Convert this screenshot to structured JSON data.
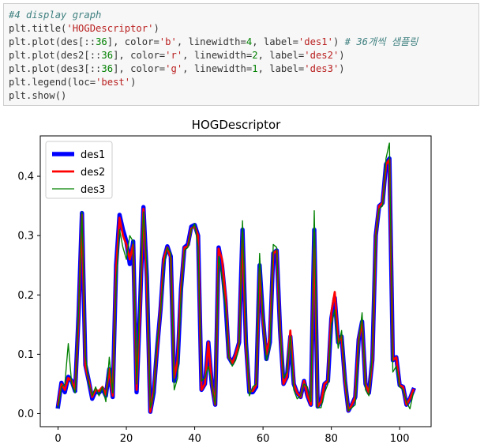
{
  "code_cell": {
    "lines": [
      [
        {
          "t": "#4 display graph",
          "c": "comment"
        }
      ],
      [
        {
          "t": "plt.title(",
          "c": ""
        },
        {
          "t": "'HOGDescriptor'",
          "c": "str"
        },
        {
          "t": ")",
          "c": ""
        }
      ],
      [
        {
          "t": "plt.plot(des[::",
          "c": ""
        },
        {
          "t": "36",
          "c": "num"
        },
        {
          "t": "], color=",
          "c": ""
        },
        {
          "t": "'b'",
          "c": "str"
        },
        {
          "t": ", linewidth=",
          "c": ""
        },
        {
          "t": "4",
          "c": "num"
        },
        {
          "t": ", label=",
          "c": ""
        },
        {
          "t": "'des1'",
          "c": "str"
        },
        {
          "t": ") ",
          "c": ""
        },
        {
          "t": "# 36개씩 샘플링",
          "c": "comment"
        }
      ],
      [
        {
          "t": "plt.plot(des2[::",
          "c": ""
        },
        {
          "t": "36",
          "c": "num"
        },
        {
          "t": "], color=",
          "c": ""
        },
        {
          "t": "'r'",
          "c": "str"
        },
        {
          "t": ", linewidth=",
          "c": ""
        },
        {
          "t": "2",
          "c": "num"
        },
        {
          "t": ", label=",
          "c": ""
        },
        {
          "t": "'des2'",
          "c": "str"
        },
        {
          "t": ")",
          "c": ""
        }
      ],
      [
        {
          "t": "plt.plot(des3[::",
          "c": ""
        },
        {
          "t": "36",
          "c": "num"
        },
        {
          "t": "], color=",
          "c": ""
        },
        {
          "t": "'g'",
          "c": "str"
        },
        {
          "t": ", linewidth=",
          "c": ""
        },
        {
          "t": "1",
          "c": "num"
        },
        {
          "t": ", label=",
          "c": ""
        },
        {
          "t": "'des3'",
          "c": "str"
        },
        {
          "t": ")",
          "c": ""
        }
      ],
      [
        {
          "t": "plt.legend(loc=",
          "c": ""
        },
        {
          "t": "'best'",
          "c": "str"
        },
        {
          "t": ")",
          "c": ""
        }
      ],
      [
        {
          "t": "plt.show()",
          "c": ""
        }
      ]
    ]
  },
  "chart_data": {
    "type": "line",
    "title": "HOGDescriptor",
    "xlabel": "",
    "ylabel": "",
    "xlim": [
      -5.2,
      109.2
    ],
    "ylim": [
      -0.022,
      0.468
    ],
    "xticks": [
      0,
      20,
      40,
      60,
      80,
      100
    ],
    "yticks": [
      0.0,
      0.1,
      0.2,
      0.3,
      0.4
    ],
    "ytick_labels": [
      "0.0",
      "0.1",
      "0.2",
      "0.3",
      "0.4"
    ],
    "grid": false,
    "legend": "upper-left",
    "series": [
      {
        "name": "des1",
        "color": "#0000ff",
        "linewidth": 4,
        "values": [
          0.012,
          0.052,
          0.036,
          0.062,
          0.055,
          0.038,
          0.165,
          0.338,
          0.082,
          0.055,
          0.025,
          0.038,
          0.035,
          0.042,
          0.03,
          0.075,
          0.028,
          0.25,
          0.335,
          0.31,
          0.29,
          0.252,
          0.29,
          0.036,
          0.18,
          0.348,
          0.23,
          0.003,
          0.035,
          0.11,
          0.175,
          0.26,
          0.282,
          0.265,
          0.055,
          0.085,
          0.21,
          0.28,
          0.285,
          0.315,
          0.318,
          0.3,
          0.04,
          0.05,
          0.12,
          0.05,
          0.015,
          0.28,
          0.25,
          0.19,
          0.095,
          0.085,
          0.1,
          0.12,
          0.31,
          0.12,
          0.036,
          0.036,
          0.045,
          0.25,
          0.16,
          0.092,
          0.12,
          0.27,
          0.275,
          0.14,
          0.05,
          0.062,
          0.13,
          0.05,
          0.035,
          0.028,
          0.055,
          0.03,
          0.015,
          0.31,
          0.012,
          0.02,
          0.05,
          0.055,
          0.16,
          0.195,
          0.12,
          0.13,
          0.055,
          0.005,
          0.015,
          0.028,
          0.125,
          0.155,
          0.05,
          0.035,
          0.09,
          0.3,
          0.35,
          0.355,
          0.42,
          0.43,
          0.09,
          0.095,
          0.048,
          0.045,
          0.015,
          0.025,
          0.04
        ]
      },
      {
        "name": "des2",
        "color": "#ff0000",
        "linewidth": 2,
        "values": [
          0.015,
          0.05,
          0.04,
          0.06,
          0.055,
          0.04,
          0.16,
          0.335,
          0.08,
          0.055,
          0.028,
          0.04,
          0.038,
          0.045,
          0.032,
          0.075,
          0.03,
          0.245,
          0.33,
          0.3,
          0.285,
          0.26,
          0.285,
          0.04,
          0.175,
          0.345,
          0.225,
          0.003,
          0.038,
          0.11,
          0.175,
          0.262,
          0.28,
          0.262,
          0.06,
          0.09,
          0.21,
          0.28,
          0.282,
          0.312,
          0.315,
          0.3,
          0.04,
          0.05,
          0.12,
          0.05,
          0.015,
          0.278,
          0.26,
          0.2,
          0.095,
          0.085,
          0.1,
          0.12,
          0.305,
          0.12,
          0.038,
          0.038,
          0.048,
          0.245,
          0.155,
          0.1,
          0.13,
          0.27,
          0.275,
          0.14,
          0.05,
          0.062,
          0.14,
          0.05,
          0.035,
          0.028,
          0.055,
          0.03,
          0.015,
          0.305,
          0.012,
          0.02,
          0.05,
          0.055,
          0.17,
          0.205,
          0.12,
          0.13,
          0.055,
          0.005,
          0.015,
          0.028,
          0.125,
          0.155,
          0.05,
          0.035,
          0.09,
          0.3,
          0.35,
          0.355,
          0.42,
          0.428,
          0.09,
          0.095,
          0.048,
          0.045,
          0.015,
          0.025,
          0.04
        ]
      },
      {
        "name": "des3",
        "color": "#008000",
        "linewidth": 1,
        "values": [
          0.01,
          0.045,
          0.05,
          0.118,
          0.05,
          0.035,
          0.17,
          0.34,
          0.1,
          0.05,
          0.03,
          0.045,
          0.03,
          0.045,
          0.02,
          0.095,
          0.035,
          0.22,
          0.31,
          0.28,
          0.26,
          0.3,
          0.29,
          0.05,
          0.2,
          0.34,
          0.25,
          0.01,
          0.03,
          0.12,
          0.17,
          0.25,
          0.28,
          0.27,
          0.04,
          0.06,
          0.2,
          0.275,
          0.28,
          0.31,
          0.32,
          0.28,
          0.055,
          0.06,
          0.08,
          0.05,
          0.015,
          0.265,
          0.23,
          0.18,
          0.095,
          0.08,
          0.09,
          0.11,
          0.325,
          0.14,
          0.03,
          0.045,
          0.05,
          0.27,
          0.16,
          0.09,
          0.11,
          0.285,
          0.28,
          0.14,
          0.06,
          0.07,
          0.13,
          0.04,
          0.025,
          0.03,
          0.05,
          0.045,
          0.02,
          0.342,
          0.01,
          0.01,
          0.035,
          0.05,
          0.15,
          0.175,
          0.11,
          0.14,
          0.06,
          0.005,
          0.01,
          0.015,
          0.12,
          0.17,
          0.04,
          0.03,
          0.1,
          0.3,
          0.345,
          0.35,
          0.43,
          0.456,
          0.07,
          0.08,
          0.045,
          0.04,
          0.02,
          0.008,
          0.035
        ]
      }
    ]
  }
}
